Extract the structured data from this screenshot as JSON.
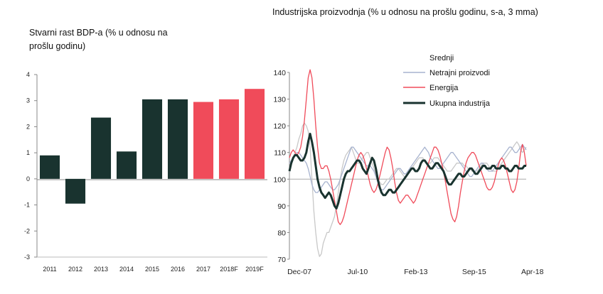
{
  "colors": {
    "dark": "#19332f",
    "red": "#f04b5a",
    "light_gray": "#c8c8c8",
    "blue_gray": "#a7b3cf",
    "axis": "#888888",
    "ref_line": "#aaaaaa"
  },
  "chart_data": [
    {
      "type": "bar",
      "title": "Stvarni rast BDP-a (% u odnosu na prošlu godinu)",
      "categories": [
        "2011",
        "2012",
        "2013",
        "2014",
        "2015",
        "2016",
        "2017",
        "2018F",
        "2019F"
      ],
      "values": [
        0.9,
        -0.95,
        2.35,
        1.05,
        3.05,
        3.05,
        2.95,
        3.05,
        3.45
      ],
      "bar_colors": [
        "dark",
        "dark",
        "dark",
        "dark",
        "dark",
        "dark",
        "red",
        "red",
        "red"
      ],
      "ylim": [
        -3,
        4
      ],
      "yticks": [
        "-3",
        "-2",
        "-1",
        "0",
        "1",
        "2",
        "3",
        "4"
      ],
      "xlabel": "",
      "ylabel": "",
      "grid": false
    },
    {
      "type": "line",
      "title": "Industrijska proizvodnja (% u odnosu na prošlu godinu, s-a, 3 mma)",
      "xlim": [
        0,
        126
      ],
      "xticks": [
        {
          "label": "Dec-07",
          "x": 0
        },
        {
          "label": "Jul-10",
          "x": 31
        },
        {
          "label": "Feb-13",
          "x": 62
        },
        {
          "label": "Sep-15",
          "x": 93
        },
        {
          "label": "Apr-18",
          "x": 124
        }
      ],
      "ylim": [
        70,
        140
      ],
      "yticks": [
        "70",
        "80",
        "90",
        "100",
        "110",
        "120",
        "130",
        "140"
      ],
      "reference_line": 100,
      "legend": [
        "Srednji",
        "Netrajni proizvodi",
        "Energija",
        "Ukupna industrija"
      ],
      "series": [
        {
          "name": "Srednji",
          "color": "light_gray",
          "values": [
            103,
            106,
            108,
            110,
            112,
            115,
            117,
            120,
            121,
            120,
            118,
            112,
            100,
            88,
            80,
            74,
            71,
            72,
            76,
            78,
            80,
            80,
            82,
            84,
            86,
            90,
            95,
            100,
            104,
            107,
            109,
            110,
            111,
            112,
            110,
            108,
            106,
            106,
            107,
            108,
            109,
            110,
            110,
            108,
            106,
            104,
            102,
            100,
            99,
            98,
            98,
            99,
            100,
            100,
            101,
            102,
            103,
            104,
            104,
            103,
            102,
            101,
            101,
            102,
            103,
            104,
            105,
            106,
            107,
            108,
            108,
            108,
            107,
            106,
            106,
            106,
            107,
            108,
            108,
            108,
            107,
            106,
            105,
            104,
            103,
            103,
            103,
            104,
            105,
            106,
            106,
            106,
            106,
            105,
            105,
            104,
            104,
            103,
            103,
            103,
            103,
            104,
            105,
            106,
            106,
            106,
            105,
            104,
            103,
            103,
            103,
            104,
            105,
            106,
            107,
            108,
            109,
            110,
            111,
            112,
            113,
            114,
            113,
            111,
            110,
            111,
            112
          ]
        },
        {
          "name": "Netrajni proizvodi",
          "color": "blue_gray",
          "values": [
            106,
            107,
            108,
            109,
            110,
            110,
            109,
            108,
            107,
            106,
            104,
            101,
            98,
            96,
            95,
            95,
            96,
            97,
            98,
            99,
            99,
            98,
            97,
            96,
            96,
            97,
            98,
            100,
            102,
            104,
            106,
            108,
            110,
            112,
            112,
            111,
            110,
            109,
            108,
            107,
            106,
            105,
            105,
            105,
            104,
            103,
            101,
            99,
            97,
            96,
            96,
            97,
            98,
            99,
            100,
            101,
            102,
            103,
            104,
            104,
            103,
            102,
            102,
            103,
            104,
            105,
            106,
            107,
            108,
            109,
            110,
            111,
            112,
            111,
            110,
            108,
            107,
            106,
            105,
            104,
            104,
            105,
            106,
            107,
            108,
            109,
            110,
            110,
            109,
            108,
            107,
            106,
            105,
            104,
            103,
            102,
            101,
            101,
            102,
            103,
            104,
            105,
            106,
            106,
            105,
            104,
            103,
            103,
            103,
            104,
            105,
            106,
            107,
            108,
            109,
            110,
            111,
            112,
            112,
            111,
            110,
            110,
            111,
            112,
            113,
            112,
            111
          ]
        },
        {
          "name": "Energija",
          "color": "red",
          "values": [
            108,
            110,
            111,
            110,
            109,
            110,
            112,
            116,
            122,
            130,
            138,
            141,
            138,
            130,
            120,
            112,
            106,
            104,
            104,
            105,
            105,
            103,
            100,
            96,
            92,
            88,
            84,
            83,
            84,
            86,
            89,
            92,
            95,
            98,
            101,
            104,
            107,
            109,
            110,
            109,
            107,
            104,
            101,
            98,
            96,
            95,
            96,
            98,
            101,
            104,
            107,
            110,
            112,
            111,
            108,
            104,
            99,
            95,
            92,
            91,
            92,
            93,
            94,
            94,
            93,
            92,
            91,
            92,
            94,
            96,
            98,
            100,
            102,
            104,
            106,
            108,
            110,
            112,
            112,
            111,
            109,
            106,
            103,
            99,
            95,
            91,
            87,
            85,
            84,
            86,
            90,
            95,
            99,
            103,
            106,
            108,
            109,
            110,
            110,
            109,
            107,
            105,
            103,
            101,
            99,
            97,
            96,
            96,
            97,
            99,
            102,
            105,
            107,
            108,
            107,
            105,
            102,
            99,
            96,
            95,
            96,
            99,
            104,
            110,
            113,
            110,
            105
          ]
        },
        {
          "name": "Ukupna industrija",
          "color": "dark",
          "values": [
            103,
            106,
            108,
            109,
            109,
            108,
            107,
            107,
            108,
            110,
            114,
            117,
            114,
            110,
            105,
            100,
            97,
            95,
            94,
            93,
            94,
            95,
            94,
            92,
            90,
            89,
            91,
            94,
            97,
            100,
            102,
            103,
            103,
            104,
            105,
            106,
            107,
            107,
            106,
            104,
            103,
            102,
            104,
            106,
            108,
            107,
            104,
            100,
            97,
            95,
            94,
            94,
            95,
            96,
            96,
            95,
            95,
            96,
            97,
            98,
            99,
            100,
            101,
            102,
            103,
            104,
            104,
            103,
            103,
            104,
            106,
            107,
            107,
            106,
            105,
            104,
            104,
            105,
            106,
            106,
            105,
            104,
            103,
            101,
            99,
            98,
            98,
            99,
            100,
            101,
            102,
            102,
            101,
            101,
            102,
            103,
            104,
            104,
            103,
            102,
            102,
            103,
            104,
            105,
            105,
            104,
            104,
            104,
            105,
            105,
            104,
            104,
            104,
            105,
            105,
            104,
            104,
            103,
            103,
            104,
            105,
            105,
            104,
            104,
            104,
            105,
            105
          ]
        }
      ]
    }
  ]
}
